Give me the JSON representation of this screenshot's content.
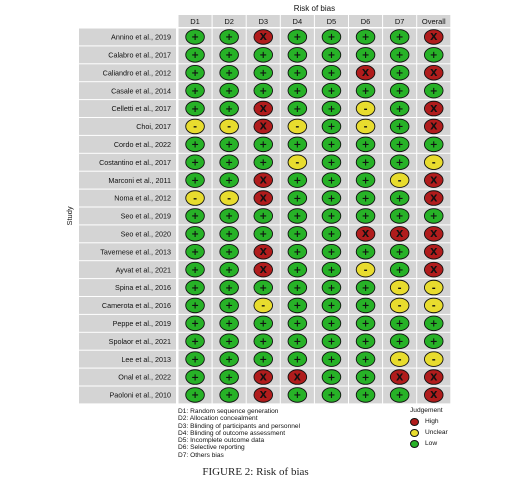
{
  "chart_data": {
    "type": "table",
    "title": "Risk of bias",
    "ylabel": "Study",
    "columns": [
      "D1",
      "D2",
      "D3",
      "D4",
      "D5",
      "D6",
      "D7",
      "Overall"
    ],
    "studies": [
      {
        "name": "Annino et al., 2019",
        "ratings": [
          "L",
          "L",
          "H",
          "L",
          "L",
          "L",
          "L",
          "H"
        ]
      },
      {
        "name": "Calabro et al., 2017",
        "ratings": [
          "L",
          "L",
          "L",
          "L",
          "L",
          "L",
          "L",
          "L"
        ]
      },
      {
        "name": "Caliandro et al., 2012",
        "ratings": [
          "L",
          "L",
          "L",
          "L",
          "L",
          "H",
          "L",
          "H"
        ]
      },
      {
        "name": "Casale et al., 2014",
        "ratings": [
          "L",
          "L",
          "L",
          "L",
          "L",
          "L",
          "L",
          "L"
        ]
      },
      {
        "name": "Celletti et al., 2017",
        "ratings": [
          "L",
          "L",
          "H",
          "L",
          "L",
          "U",
          "L",
          "H"
        ]
      },
      {
        "name": "Choi, 2017",
        "ratings": [
          "U",
          "U",
          "H",
          "U",
          "L",
          "U",
          "L",
          "H"
        ]
      },
      {
        "name": "Cordo et al., 2022",
        "ratings": [
          "L",
          "L",
          "L",
          "L",
          "L",
          "L",
          "L",
          "L"
        ]
      },
      {
        "name": "Costantino et al., 2017",
        "ratings": [
          "L",
          "L",
          "L",
          "U",
          "L",
          "L",
          "L",
          "U"
        ]
      },
      {
        "name": "Marconi et al., 2011",
        "ratings": [
          "L",
          "L",
          "H",
          "L",
          "L",
          "L",
          "U",
          "H"
        ]
      },
      {
        "name": "Noma et al., 2012",
        "ratings": [
          "U",
          "U",
          "H",
          "L",
          "L",
          "L",
          "L",
          "H"
        ]
      },
      {
        "name": "Seo et al., 2019",
        "ratings": [
          "L",
          "L",
          "L",
          "L",
          "L",
          "L",
          "L",
          "L"
        ]
      },
      {
        "name": "Seo et al., 2020",
        "ratings": [
          "L",
          "L",
          "L",
          "L",
          "L",
          "H",
          "H",
          "H"
        ]
      },
      {
        "name": "Tavernese et al., 2013",
        "ratings": [
          "L",
          "L",
          "H",
          "L",
          "L",
          "L",
          "L",
          "H"
        ]
      },
      {
        "name": "Ayvat et al., 2021",
        "ratings": [
          "L",
          "L",
          "H",
          "L",
          "L",
          "U",
          "L",
          "H"
        ]
      },
      {
        "name": "Spina et al., 2016",
        "ratings": [
          "L",
          "L",
          "L",
          "L",
          "L",
          "L",
          "U",
          "U"
        ]
      },
      {
        "name": "Camerota et al., 2016",
        "ratings": [
          "L",
          "L",
          "U",
          "L",
          "L",
          "L",
          "U",
          "U"
        ]
      },
      {
        "name": "Peppe et al., 2019",
        "ratings": [
          "L",
          "L",
          "L",
          "L",
          "L",
          "L",
          "L",
          "L"
        ]
      },
      {
        "name": "Spolaor et al., 2021",
        "ratings": [
          "L",
          "L",
          "L",
          "L",
          "L",
          "L",
          "L",
          "L"
        ]
      },
      {
        "name": "Lee et al., 2013",
        "ratings": [
          "L",
          "L",
          "L",
          "L",
          "L",
          "L",
          "U",
          "U"
        ]
      },
      {
        "name": "Onal et al., 2022",
        "ratings": [
          "L",
          "L",
          "H",
          "H",
          "L",
          "L",
          "H",
          "H"
        ]
      },
      {
        "name": "Paoloni et al., 2010",
        "ratings": [
          "L",
          "L",
          "H",
          "L",
          "L",
          "L",
          "L",
          "H"
        ]
      }
    ],
    "domain_descriptions": [
      "D1: Random sequence generation",
      "D2: Allocation concealment",
      "D3: Blinding of participants and personnel",
      "D4: Blinding of outcome assessment",
      "D5: Incomplete outcome data",
      "D6: Selective reporting",
      "D7: Others bias"
    ],
    "judgement": {
      "title": "Judgement",
      "levels": [
        {
          "code": "H",
          "label": "High",
          "symbol": "X",
          "color": "#b01c1c"
        },
        {
          "code": "U",
          "label": "Unclear",
          "symbol": "-",
          "color": "#e8dc2e"
        },
        {
          "code": "L",
          "label": "Low",
          "symbol": "+",
          "color": "#27b227"
        }
      ]
    }
  },
  "caption": "FIGURE 2: Risk of bias"
}
